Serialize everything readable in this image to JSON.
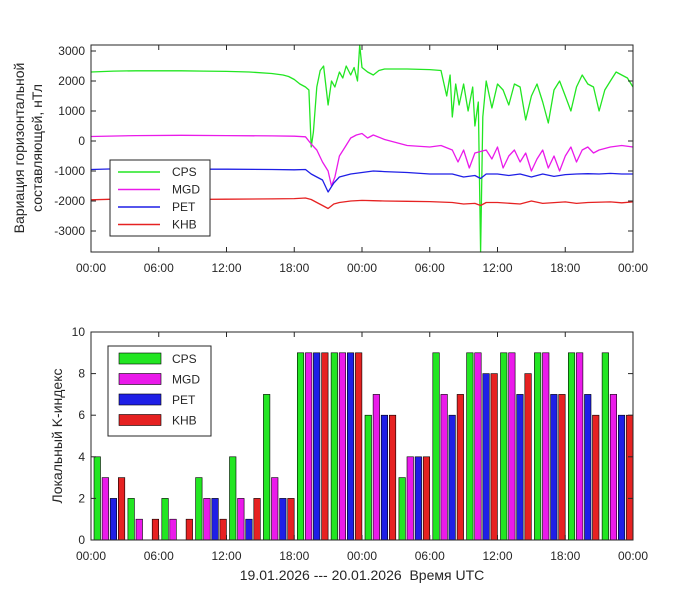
{
  "chart_data": [
    {
      "type": "line",
      "ylabel_lines": [
        "Вариация горизонтальной",
        "составляющей, нТл"
      ],
      "ylim": [
        -3700,
        3200
      ],
      "yticks": [
        3000,
        2000,
        1000,
        0,
        -1000,
        -2000,
        -3000
      ],
      "xlim_hours": [
        0,
        48
      ],
      "xtick_labels": [
        "00:00",
        "06:00",
        "12:00",
        "18:00",
        "00:00",
        "06:00",
        "12:00",
        "18:00",
        "00:00"
      ],
      "legend_position": "lower-left",
      "series": [
        {
          "name": "CPS",
          "color": "#22e622",
          "points": [
            [
              0,
              2300
            ],
            [
              2,
              2330
            ],
            [
              4,
              2340
            ],
            [
              6,
              2340
            ],
            [
              8,
              2340
            ],
            [
              10,
              2330
            ],
            [
              12,
              2320
            ],
            [
              14,
              2300
            ],
            [
              16,
              2250
            ],
            [
              17,
              2200
            ],
            [
              17.5,
              2150
            ],
            [
              18,
              2050
            ],
            [
              18.5,
              1900
            ],
            [
              19,
              1800
            ],
            [
              19.3,
              1700
            ],
            [
              19.5,
              -200
            ],
            [
              19.7,
              300
            ],
            [
              20,
              1800
            ],
            [
              20.3,
              2350
            ],
            [
              20.6,
              2500
            ],
            [
              21,
              1200
            ],
            [
              21.3,
              2000
            ],
            [
              21.6,
              1800
            ],
            [
              22,
              2300
            ],
            [
              22.3,
              2100
            ],
            [
              22.6,
              2500
            ],
            [
              23,
              2200
            ],
            [
              23.3,
              2450
            ],
            [
              23.6,
              2000
            ],
            [
              23.8,
              3200
            ],
            [
              24,
              2450
            ],
            [
              24.5,
              2300
            ],
            [
              25,
              2200
            ],
            [
              25.5,
              2350
            ],
            [
              26,
              2400
            ],
            [
              28,
              2400
            ],
            [
              30,
              2380
            ],
            [
              31,
              2350
            ],
            [
              31.5,
              1500
            ],
            [
              31.8,
              2200
            ],
            [
              32,
              800
            ],
            [
              32.3,
              1900
            ],
            [
              32.6,
              1200
            ],
            [
              33,
              1900
            ],
            [
              33.4,
              1000
            ],
            [
              33.8,
              1800
            ],
            [
              34,
              500
            ],
            [
              34.3,
              1300
            ],
            [
              34.5,
              -3700
            ],
            [
              34.7,
              800
            ],
            [
              35,
              2000
            ],
            [
              35.5,
              1100
            ],
            [
              36,
              1900
            ],
            [
              36.5,
              1700
            ],
            [
              37,
              1200
            ],
            [
              37.5,
              1900
            ],
            [
              38,
              1800
            ],
            [
              38.5,
              700
            ],
            [
              39,
              1500
            ],
            [
              39.5,
              1900
            ],
            [
              40,
              1300
            ],
            [
              40.5,
              600
            ],
            [
              41,
              1700
            ],
            [
              41.5,
              2000
            ],
            [
              42,
              1500
            ],
            [
              42.5,
              1000
            ],
            [
              43,
              1800
            ],
            [
              43.5,
              2200
            ],
            [
              44,
              1900
            ],
            [
              44.5,
              1800
            ],
            [
              45,
              1000
            ],
            [
              45.5,
              1700
            ],
            [
              46,
              2000
            ],
            [
              46.5,
              2300
            ],
            [
              47,
              2200
            ],
            [
              47.5,
              2100
            ],
            [
              48,
              1800
            ]
          ]
        },
        {
          "name": "MGD",
          "color": "#ea1aea",
          "points": [
            [
              0,
              150
            ],
            [
              4,
              180
            ],
            [
              8,
              190
            ],
            [
              12,
              180
            ],
            [
              16,
              170
            ],
            [
              18,
              160
            ],
            [
              19,
              140
            ],
            [
              19.5,
              -100
            ],
            [
              20,
              -300
            ],
            [
              20.5,
              -700
            ],
            [
              21,
              -1000
            ],
            [
              21.3,
              -1500
            ],
            [
              21.6,
              -1200
            ],
            [
              22,
              -500
            ],
            [
              22.5,
              -200
            ],
            [
              23,
              100
            ],
            [
              23.5,
              200
            ],
            [
              24,
              250
            ],
            [
              24.5,
              100
            ],
            [
              25,
              200
            ],
            [
              26,
              50
            ],
            [
              27,
              -50
            ],
            [
              28,
              -150
            ],
            [
              30,
              -200
            ],
            [
              31,
              -150
            ],
            [
              32,
              -300
            ],
            [
              32.5,
              -700
            ],
            [
              33,
              -300
            ],
            [
              33.5,
              -900
            ],
            [
              34,
              -400
            ],
            [
              35,
              -300
            ],
            [
              35.5,
              -600
            ],
            [
              36,
              -200
            ],
            [
              36.5,
              -900
            ],
            [
              37,
              -500
            ],
            [
              37.5,
              -300
            ],
            [
              38,
              -700
            ],
            [
              38.5,
              -400
            ],
            [
              39,
              -1000
            ],
            [
              39.5,
              -600
            ],
            [
              40,
              -300
            ],
            [
              40.5,
              -900
            ],
            [
              41,
              -500
            ],
            [
              41.5,
              -1000
            ],
            [
              42,
              -500
            ],
            [
              42.5,
              -200
            ],
            [
              43,
              -700
            ],
            [
              43.5,
              -300
            ],
            [
              44,
              -200
            ],
            [
              44.5,
              -400
            ],
            [
              45,
              -300
            ],
            [
              46,
              -200
            ],
            [
              47,
              -150
            ],
            [
              48,
              -200
            ]
          ]
        },
        {
          "name": "PET",
          "color": "#1f1fe6",
          "points": [
            [
              0,
              -950
            ],
            [
              2,
              -930
            ],
            [
              4,
              -940
            ],
            [
              8,
              -940
            ],
            [
              12,
              -940
            ],
            [
              16,
              -950
            ],
            [
              18,
              -960
            ],
            [
              19,
              -950
            ],
            [
              19.5,
              -1100
            ],
            [
              20,
              -1200
            ],
            [
              20.5,
              -1300
            ],
            [
              21,
              -1700
            ],
            [
              21.5,
              -1400
            ],
            [
              22,
              -1200
            ],
            [
              23,
              -1100
            ],
            [
              24,
              -1050
            ],
            [
              25,
              -1000
            ],
            [
              26,
              -1020
            ],
            [
              28,
              -1050
            ],
            [
              30,
              -1100
            ],
            [
              32,
              -1100
            ],
            [
              33,
              -1200
            ],
            [
              34,
              -1150
            ],
            [
              34.5,
              -1250
            ],
            [
              35,
              -1100
            ],
            [
              36,
              -1100
            ],
            [
              37,
              -1150
            ],
            [
              38,
              -1100
            ],
            [
              39,
              -1200
            ],
            [
              40,
              -1100
            ],
            [
              41,
              -1180
            ],
            [
              42,
              -1120
            ],
            [
              43,
              -1100
            ],
            [
              44,
              -1090
            ],
            [
              45,
              -1100
            ],
            [
              46,
              -1080
            ],
            [
              47,
              -1100
            ],
            [
              48,
              -1100
            ]
          ]
        },
        {
          "name": "KHB",
          "color": "#e62222",
          "points": [
            [
              0,
              -1960
            ],
            [
              2,
              -1940
            ],
            [
              4,
              -1950
            ],
            [
              8,
              -1950
            ],
            [
              12,
              -1940
            ],
            [
              16,
              -1930
            ],
            [
              18,
              -1920
            ],
            [
              19,
              -1900
            ],
            [
              19.5,
              -1950
            ],
            [
              20,
              -2050
            ],
            [
              20.5,
              -2150
            ],
            [
              21,
              -2250
            ],
            [
              21.5,
              -2100
            ],
            [
              22,
              -2050
            ],
            [
              23,
              -2000
            ],
            [
              24,
              -1980
            ],
            [
              25,
              -1990
            ],
            [
              26,
              -2000
            ],
            [
              28,
              -2010
            ],
            [
              30,
              -2020
            ],
            [
              32,
              -2050
            ],
            [
              33,
              -2100
            ],
            [
              34,
              -2080
            ],
            [
              34.5,
              -2150
            ],
            [
              35,
              -2050
            ],
            [
              36,
              -2050
            ],
            [
              38,
              -2100
            ],
            [
              39,
              -2000
            ],
            [
              40,
              -2080
            ],
            [
              42,
              -2030
            ],
            [
              43,
              -2080
            ],
            [
              44,
              -2050
            ],
            [
              46,
              -2030
            ],
            [
              47,
              -2060
            ],
            [
              48,
              -2030
            ]
          ]
        }
      ]
    },
    {
      "type": "bar",
      "ylabel": "Локальный K-индекс",
      "xlabel": "19.01.2026 --- 20.01.2026  Время UTC",
      "ylim": [
        0,
        10
      ],
      "yticks": [
        0,
        2,
        4,
        6,
        8,
        10
      ],
      "xlim_hours": [
        0,
        48
      ],
      "xtick_labels": [
        "00:00",
        "06:00",
        "12:00",
        "18:00",
        "00:00",
        "06:00",
        "12:00",
        "18:00",
        "00:00"
      ],
      "legend_position": "top-left",
      "interval_hours": 3,
      "series": [
        {
          "name": "CPS",
          "color": "#22e622",
          "values": [
            4,
            2,
            2,
            3,
            4,
            7,
            9,
            9,
            6,
            3,
            9,
            9,
            9,
            9,
            9,
            9
          ]
        },
        {
          "name": "MGD",
          "color": "#ea1aea",
          "values": [
            3,
            1,
            1,
            2,
            2,
            3,
            9,
            9,
            7,
            4,
            7,
            9,
            9,
            9,
            9,
            7
          ]
        },
        {
          "name": "PET",
          "color": "#1f1fe6",
          "values": [
            2,
            0,
            0,
            2,
            1,
            2,
            9,
            9,
            6,
            4,
            6,
            8,
            7,
            7,
            7,
            6
          ]
        },
        {
          "name": "KHB",
          "color": "#e62222",
          "values": [
            3,
            1,
            1,
            1,
            2,
            2,
            9,
            9,
            6,
            4,
            7,
            8,
            8,
            7,
            6,
            6
          ]
        }
      ]
    }
  ]
}
